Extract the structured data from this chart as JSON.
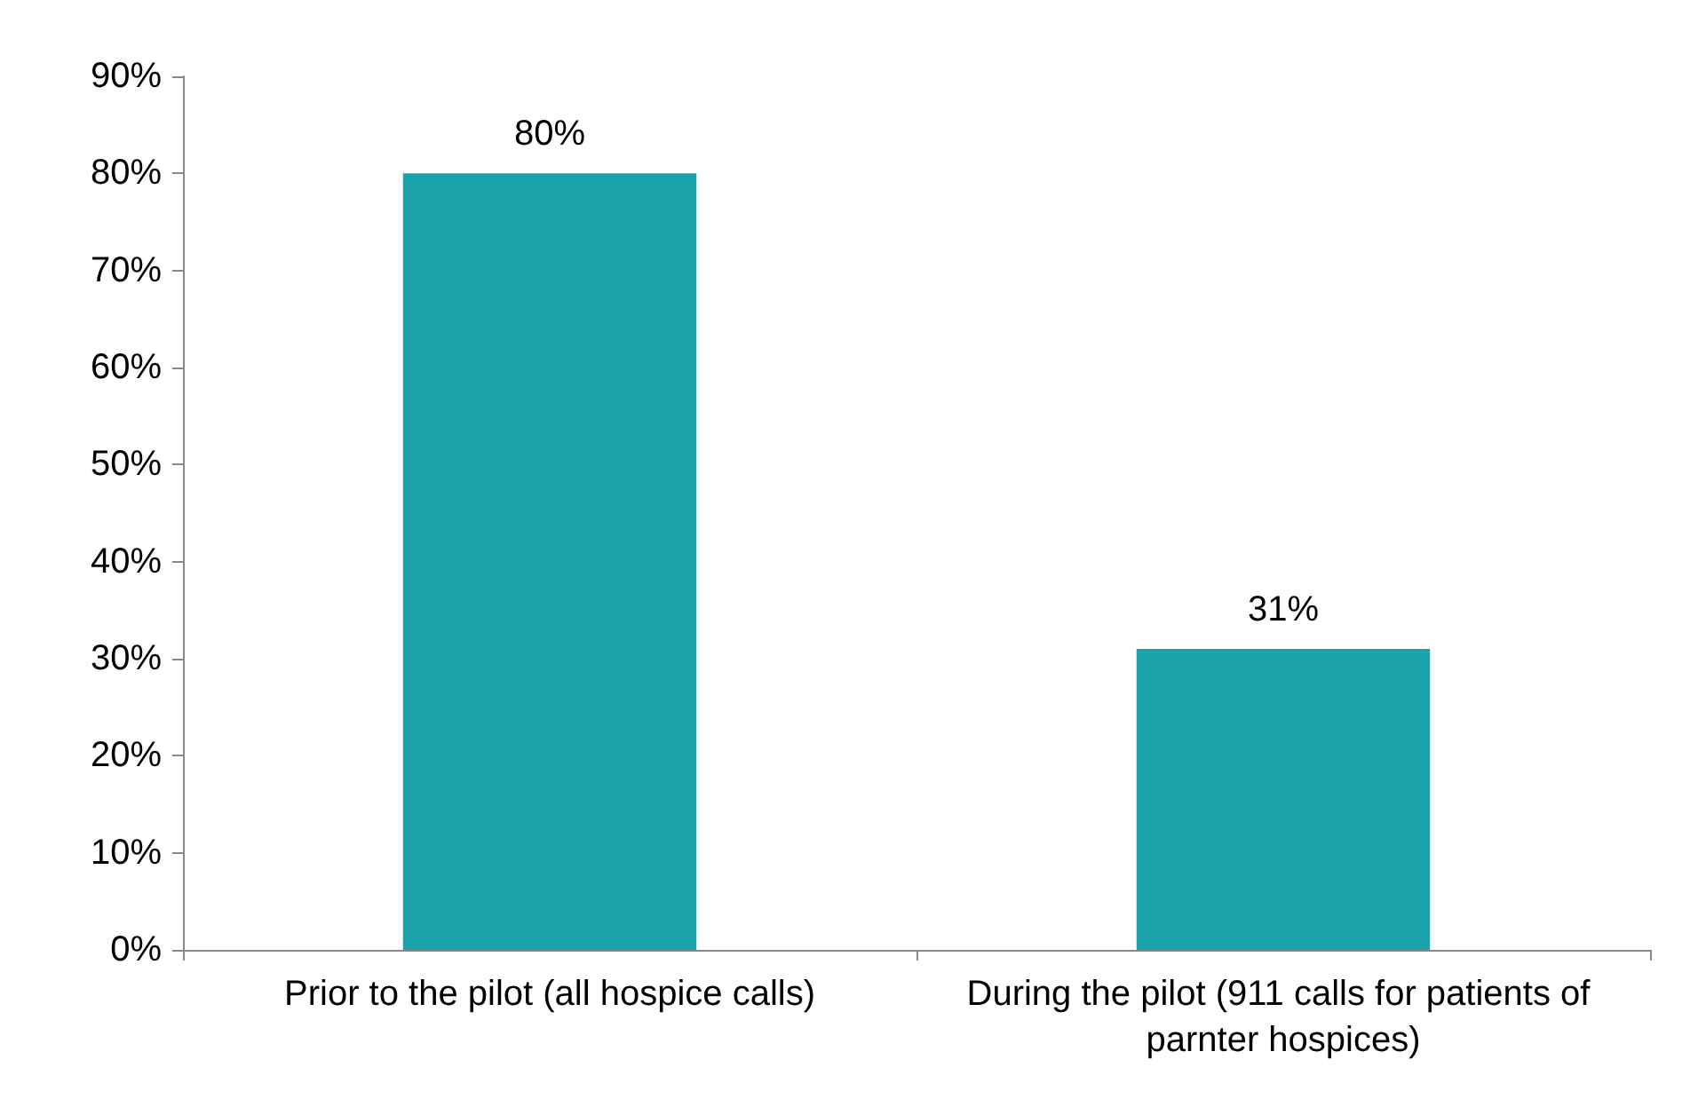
{
  "chart_data": {
    "type": "bar",
    "categories": [
      "Prior to the pilot (all hospice calls)",
      "During the pilot (911 calls for patients of parnter hospices)"
    ],
    "values": [
      80,
      31
    ],
    "color": "#1aa3ab",
    "value_labels": [
      "80%",
      "31%"
    ],
    "ylim": [
      0,
      90
    ],
    "yticks": [
      {
        "value": 0,
        "label": "0%"
      },
      {
        "value": 10,
        "label": "10%"
      },
      {
        "value": 20,
        "label": "20%"
      },
      {
        "value": 30,
        "label": "30%"
      },
      {
        "value": 40,
        "label": "40%"
      },
      {
        "value": 50,
        "label": "50%"
      },
      {
        "value": 60,
        "label": "60%"
      },
      {
        "value": 70,
        "label": "70%"
      },
      {
        "value": 80,
        "label": "80%"
      },
      {
        "value": 90,
        "label": "90%"
      }
    ],
    "grid": false
  }
}
